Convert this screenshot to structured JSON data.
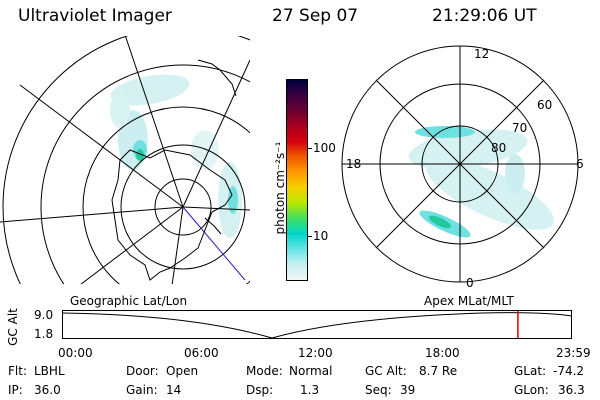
{
  "header": {
    "instrument": "Ultraviolet Imager",
    "date": "27 Sep 07",
    "time": "21:29:06 UT"
  },
  "colorbar": {
    "unit_label": "photon cm⁻²s⁻¹",
    "ticks": [
      "100",
      "10"
    ],
    "colors": [
      "#00003a",
      "#3a0040",
      "#6a0035",
      "#a8001e",
      "#d80010",
      "#f05a00",
      "#ff9900",
      "#f5d000",
      "#b8e600",
      "#40e060",
      "#00d6c8",
      "#66e6e6",
      "#c8f0f0",
      "#f2f5f5"
    ]
  },
  "polar_plot": {
    "mlt_labels": {
      "top": "12",
      "left": "18",
      "right": "6",
      "bottom": "0"
    },
    "lat_labels": [
      "60",
      "70",
      "80"
    ]
  },
  "timeline": {
    "y_label": "GC Alt",
    "y_ticks": [
      "9.0",
      "1.8"
    ],
    "left_title": "Geographic Lat/Lon",
    "right_title": "Apex  MLat/MLT",
    "x_ticks": [
      "00:00",
      "06:00",
      "12:00",
      "18:00",
      "23:59"
    ],
    "current_time_fraction": 0.894
  },
  "info": {
    "row1": [
      {
        "label": "Flt:",
        "value": "LBHL"
      },
      {
        "label": "Door:",
        "value": "Open"
      },
      {
        "label": "Mode:",
        "value": "Normal"
      },
      {
        "label": "GC Alt:",
        "value": "8.7 Re"
      },
      {
        "label": "GLat:",
        "value": "-74.2"
      }
    ],
    "row2": [
      {
        "label": "IP:",
        "value": "36.0"
      },
      {
        "label": "Gain:",
        "value": "14"
      },
      {
        "label": "Dsp:",
        "value": "1.3"
      },
      {
        "label": "Seq:",
        "value": "39"
      },
      {
        "label": "GLon:",
        "value": "36.3"
      }
    ]
  },
  "colors": {
    "marker": "#e00000",
    "aurora_light": "#cdeef0",
    "aurora_mid": "#6fe0e0",
    "aurora_strong": "#22c8a0"
  }
}
